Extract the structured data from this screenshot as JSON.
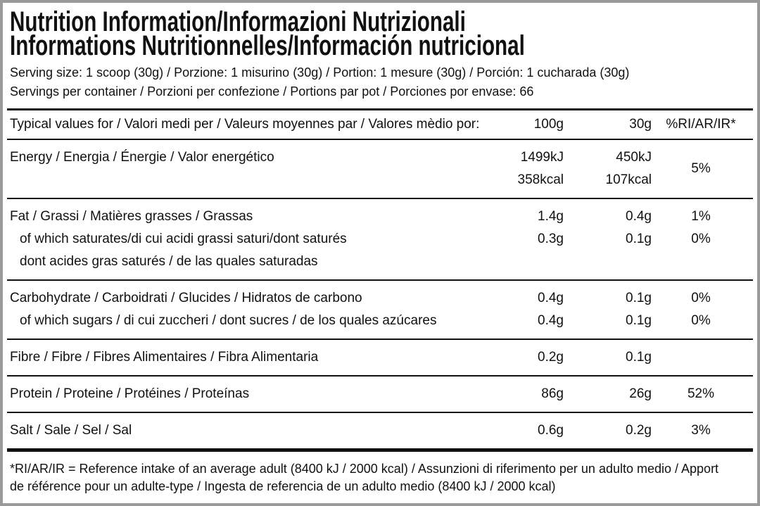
{
  "header": {
    "title_lines": [
      "Nutrition Information/Informazioni Nutrizionali",
      "Informations Nutritionnelles/Información nutricional"
    ],
    "serving_lines": [
      "Serving size: 1 scoop (30g) / Porzione: 1 misurino (30g) / Portion: 1 mesure (30g) / Porción: 1 cucharada (30g)",
      "Servings per container / Porzioni per confezione / Portions par pot / Porciones por envase: 66"
    ]
  },
  "table": {
    "columns": [
      "Typical values for / Valori medi per / Valeurs moyennes par / Valores mèdio por:",
      "100g",
      "30g",
      "%RI/AR/IR*"
    ],
    "groups": [
      {
        "rows": [
          {
            "label": "Energy / Energia / Énergie / Valor energético",
            "per100": "1499kJ",
            "per30": "450kJ"
          },
          {
            "per100": "358kcal",
            "per30": "107kcal"
          }
        ],
        "ri": "5%"
      },
      {
        "rows": [
          {
            "label": "Fat / Grassi / Matières grasses / Grassas",
            "per100": "1.4g",
            "per30": "0.4g",
            "ri": "1%"
          },
          {
            "label": "of which saturates/di cui acidi grassi saturi/dont saturés",
            "per100": "0.3g",
            "per30": "0.1g",
            "ri": "0%"
          },
          {
            "label": "dont acides gras saturés / de las quales saturadas"
          }
        ]
      },
      {
        "rows": [
          {
            "label": "Carbohydrate / Carboidrati / Glucides / Hidratos de carbono",
            "per100": "0.4g",
            "per30": "0.1g",
            "ri": "0%"
          },
          {
            "label": "of which sugars / di cui zuccheri / dont sucres / de los quales azúcares",
            "per100": "0.4g",
            "per30": "0.1g",
            "ri": "0%"
          }
        ]
      },
      {
        "rows": [
          {
            "label": "Fibre / Fibre / Fibres Alimentaires / Fibra Alimentaria",
            "per100": "0.2g",
            "per30": "0.1g"
          }
        ]
      },
      {
        "rows": [
          {
            "label": "Protein / Proteine / Protéines / Proteínas",
            "per100": "86g",
            "per30": "26g",
            "ri": "52%"
          }
        ]
      },
      {
        "rows": [
          {
            "label": "Salt / Sale / Sel / Sal",
            "per100": "0.6g",
            "per30": "0.2g",
            "ri": "3%"
          }
        ]
      }
    ]
  },
  "footnote": [
    "*RI/AR/IR = Reference intake of an average adult (8400 kJ / 2000 kcal)  / Assunzioni di riferimento per un adulto medio / Apport",
    "de référence pour un adulte-type / Ingesta de referencia de un adulto medio (8400 kJ / 2000 kcal)"
  ]
}
